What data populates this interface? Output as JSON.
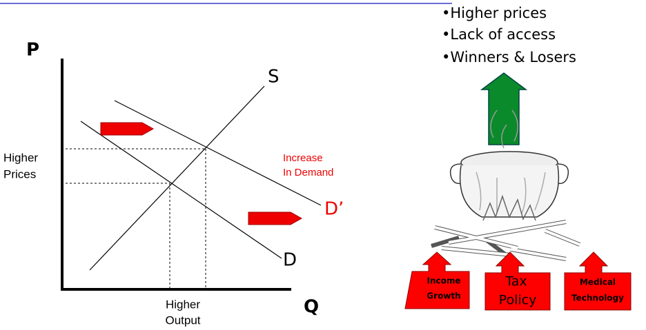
{
  "graph": {
    "y_axis": "P",
    "x_axis": "Q",
    "supply": "S",
    "demand": "D",
    "new_demand": "D’",
    "higher_prices": [
      "Higher",
      "Prices"
    ],
    "increase": [
      "Increase",
      "In Demand"
    ],
    "higher_output": [
      "Higher",
      "Output"
    ]
  },
  "results": [
    "•Higher prices",
    "•Lack of access",
    "•Winners & Losers"
  ],
  "drivers": [
    {
      "lines": [
        "Income",
        "Growth"
      ]
    },
    {
      "lines": [
        "Tax",
        "Policy"
      ]
    },
    {
      "lines": [
        "Medical",
        "Technology"
      ]
    }
  ]
}
